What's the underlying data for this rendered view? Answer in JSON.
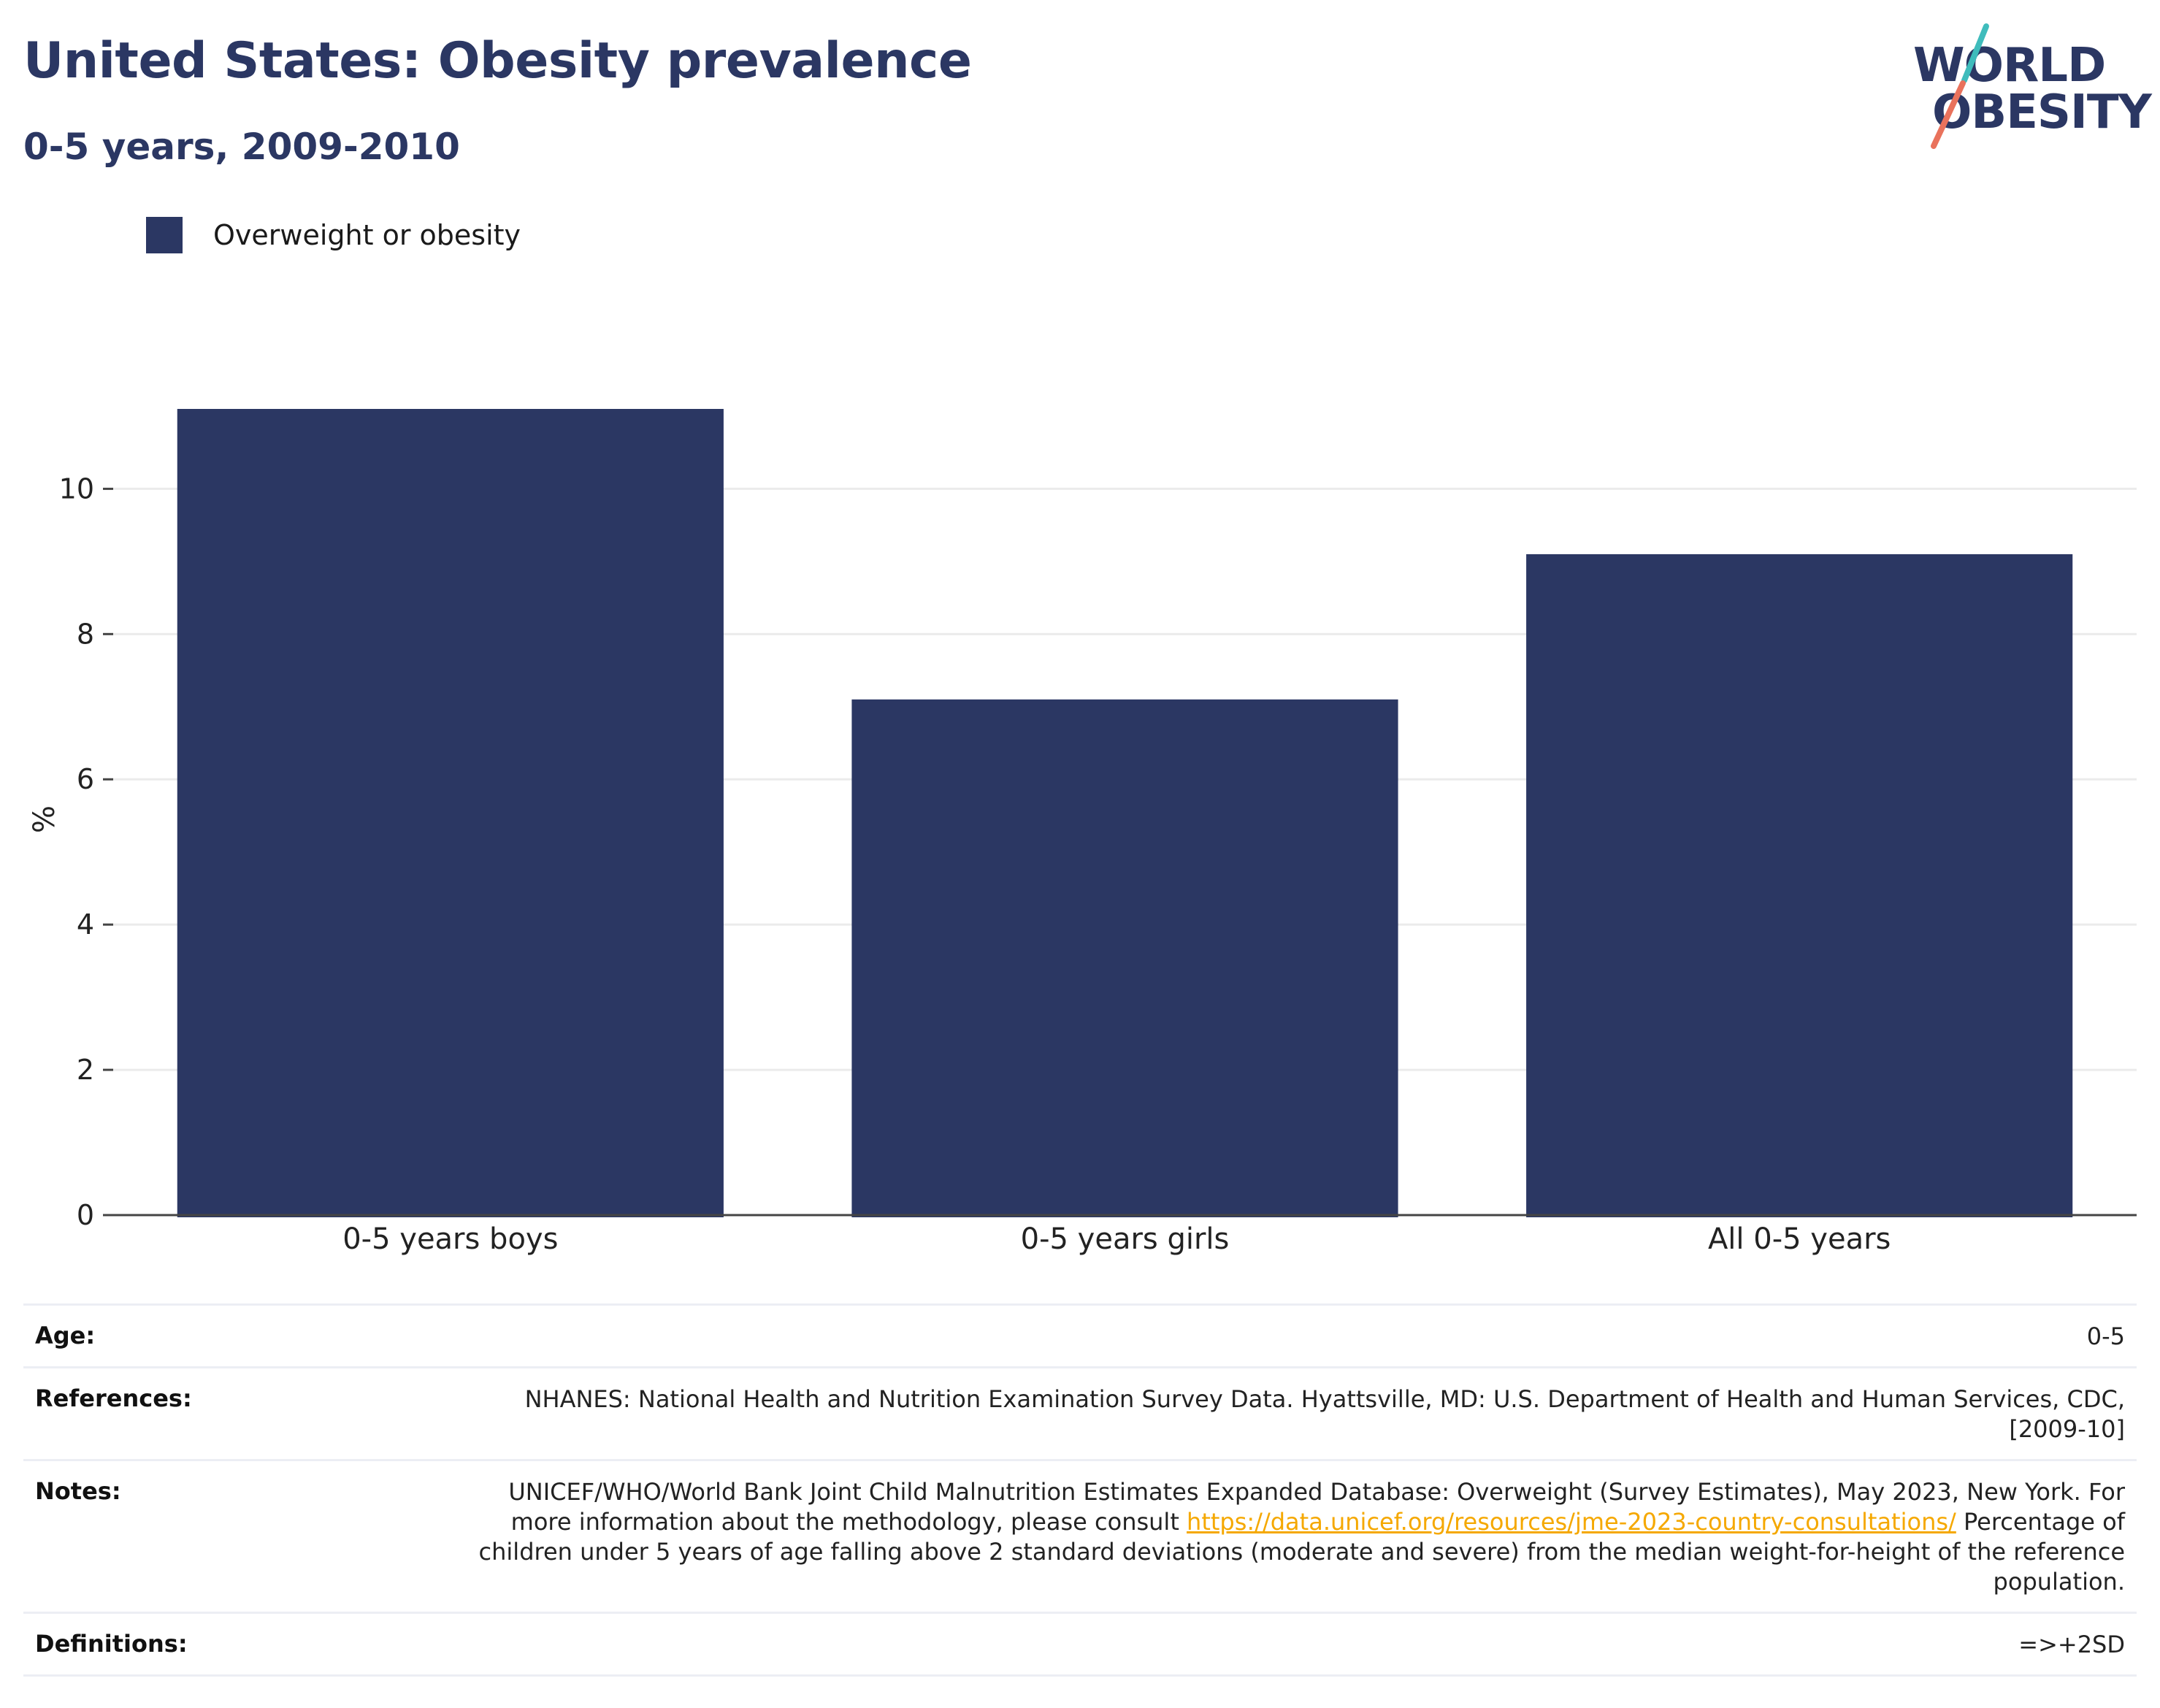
{
  "header": {
    "title": "United States: Obesity prevalence",
    "subtitle": "0-5 years, 2009-2010"
  },
  "logo": {
    "line1": "WORLD",
    "line2": "OBESITY",
    "colors": {
      "text": "#2b3763",
      "slash_top": "#3fbcbc",
      "slash_bottom": "#e9725c"
    }
  },
  "legend": {
    "label": "Overweight or obesity",
    "color": "#2b3763"
  },
  "chart_data": {
    "type": "bar",
    "categories": [
      "0-5 years boys",
      "0-5 years girls",
      "All 0-5 years"
    ],
    "series": [
      {
        "name": "Overweight or obesity",
        "values": [
          11.1,
          7.1,
          9.1
        ],
        "color": "#2b3763"
      }
    ],
    "ylabel": "%",
    "xlabel": "",
    "ylim": [
      0,
      11.1
    ],
    "yticks": [
      0,
      2,
      4,
      6,
      8,
      10
    ],
    "grid": true,
    "legend_position": "top-left"
  },
  "info": {
    "age": {
      "label": "Age:",
      "value": "0-5"
    },
    "references": {
      "label": "References:",
      "value": "NHANES: National Health and Nutrition Examination Survey Data. Hyattsville, MD: U.S. Department of Health and Human Services, CDC, [2009-10]"
    },
    "notes": {
      "label": "Notes:",
      "text_before_link": "UNICEF/WHO/World Bank Joint Child Malnutrition Estimates Expanded Database: Overweight (Survey Estimates), May 2023, New York. For more information about the methodology, please consult ",
      "link": "https://data.unicef.org/resources/jme-2023-country-consultations/",
      "text_after_link": "Percentage of children under 5 years of age falling above 2 standard deviations (moderate and severe) from the median weight-for-height of the reference population."
    },
    "definitions": {
      "label": "Definitions:",
      "value": "=>+2SD"
    }
  }
}
